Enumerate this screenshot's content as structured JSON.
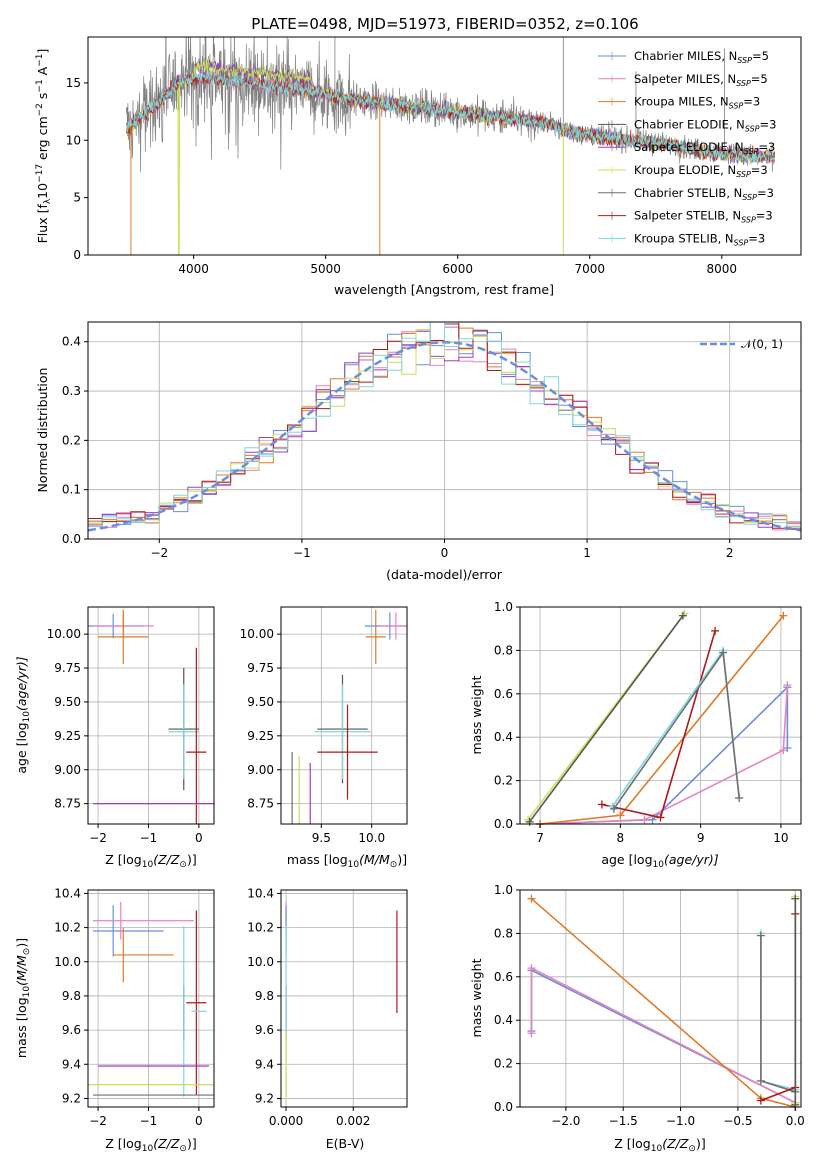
{
  "title": "PLATE=0498, MJD=51973, FIBERID=0352, z=0.106",
  "colors": {
    "chabrier_miles": "#6a8ee0",
    "salpeter_miles": "#e684c0",
    "kroupa_miles": "#e07a28",
    "chabrier_elodie": "#555555",
    "salpeter_elodie": "#9b3fc8",
    "kroupa_elodie": "#c8e05a",
    "chabrier_stelib": "#6f6f6f",
    "salpeter_stelib": "#b01818",
    "kroupa_stelib": "#7fd8dc",
    "data": "#808080",
    "normal": "#6a8ee0"
  },
  "chart_data": [
    {
      "id": "spectrum",
      "type": "line",
      "xlabel": "wavelength [Angstrom, rest frame]",
      "ylabel_main": "Flux [f",
      "ylabel_sub": "λ",
      "ylabel_rest": "10",
      "ylabel_exp1": "−17",
      "ylabel_unit": " erg cm",
      "ylabel_exp2": "−2",
      "ylabel_s": " s",
      "ylabel_exp3": "−1",
      "ylabel_A": " A",
      "ylabel_exp4": "−1",
      "ylabel_end": "]",
      "xlim": [
        3200,
        8600
      ],
      "ylim": [
        0,
        19
      ],
      "xticks": [
        "4000",
        "5000",
        "6000",
        "7000",
        "8000"
      ],
      "xtick_values": [
        4000,
        5000,
        6000,
        7000,
        8000
      ],
      "yticks": [
        "0",
        "5",
        "10",
        "15"
      ],
      "ytick_values": [
        0,
        5,
        10,
        15
      ],
      "continuum": {
        "x": [
          3500,
          3700,
          3900,
          4100,
          4300,
          4500,
          4700,
          4900,
          5100,
          5300,
          5500,
          5700,
          5900,
          6100,
          6300,
          6500,
          6700,
          6900,
          7100,
          7300,
          7500,
          7700,
          7900,
          8100,
          8300
        ],
        "y": [
          11.0,
          13.0,
          15.2,
          15.5,
          15.1,
          14.9,
          14.6,
          14.3,
          13.7,
          13.4,
          13.1,
          12.9,
          12.6,
          12.3,
          12.0,
          11.8,
          11.4,
          10.6,
          10.3,
          10.0,
          9.8,
          9.4,
          9.0,
          8.8,
          8.5
        ]
      },
      "legend": [
        {
          "label": "Chabrier MILES, N",
          "sub": "SSP",
          "suffix": "=5",
          "color_key": "chabrier_miles"
        },
        {
          "label": "Salpeter MILES, N",
          "sub": "SSP",
          "suffix": "=5",
          "color_key": "salpeter_miles"
        },
        {
          "label": "Kroupa MILES, N",
          "sub": "SSP",
          "suffix": "=3",
          "color_key": "kroupa_miles"
        },
        {
          "label": "Chabrier ELODIE, N",
          "sub": "SSP",
          "suffix": "=3",
          "color_key": "chabrier_elodie"
        },
        {
          "label": "Salpeter ELODIE, N",
          "sub": "SSP",
          "suffix": "=3",
          "color_key": "salpeter_elodie"
        },
        {
          "label": "Kroupa ELODIE, N",
          "sub": "SSP",
          "suffix": "=3",
          "color_key": "kroupa_elodie"
        },
        {
          "label": "Chabrier STELIB, N",
          "sub": "SSP",
          "suffix": "=3",
          "color_key": "chabrier_stelib"
        },
        {
          "label": "Salpeter STELIB, N",
          "sub": "SSP",
          "suffix": "=3",
          "color_key": "salpeter_stelib"
        },
        {
          "label": "Kroupa STELIB, N",
          "sub": "SSP",
          "suffix": "=3",
          "color_key": "kroupa_stelib"
        }
      ],
      "legend_placement": "top-right"
    },
    {
      "id": "residuals",
      "type": "step-histogram",
      "xlabel": "(data-model)/error",
      "ylabel": "Normed distribution",
      "xlim": [
        -2.5,
        2.5
      ],
      "ylim": [
        0,
        0.44
      ],
      "xticks": [
        "−2",
        "−1",
        "0",
        "1",
        "2"
      ],
      "xtick_values": [
        -2,
        -1,
        0,
        1,
        2
      ],
      "yticks": [
        "0.0",
        "0.1",
        "0.2",
        "0.3",
        "0.4"
      ],
      "ytick_values": [
        0,
        0.1,
        0.2,
        0.3,
        0.4
      ],
      "normal_label": "𝒩(0, 1)",
      "legend_placement": "top-right",
      "grid": true
    },
    {
      "id": "age_vs_Z",
      "type": "errorbar",
      "xlabel": "Z [log",
      "xlabel_sub": "10",
      "xlabel_rest": "(Z/Z",
      "xlabel_sun": "⊙",
      "xlabel_end": ")]",
      "ylabel": "age  [log",
      "ylabel_sub": "10",
      "ylabel_rest": "(age/yr)]",
      "xlim": [
        -2.2,
        0.3
      ],
      "ylim": [
        8.6,
        10.2
      ],
      "xticks": [
        "−2",
        "−1",
        "0"
      ],
      "xtick_values": [
        -2,
        -1,
        0
      ],
      "yticks": [
        "8.75",
        "9.00",
        "9.25",
        "9.50",
        "9.75",
        "10.00"
      ],
      "ytick_values": [
        8.75,
        9.0,
        9.25,
        9.5,
        9.75,
        10.0
      ],
      "points": [
        {
          "x": -1.7,
          "y": 10.06,
          "xerr": 0.6,
          "yerr": 0.09,
          "c": "chabrier_miles"
        },
        {
          "x": -1.5,
          "y": 10.06,
          "xerr": 0.6,
          "yerr": 0.09,
          "c": "salpeter_miles"
        },
        {
          "x": -1.5,
          "y": 9.98,
          "xerr": 0.5,
          "yerr": 0.2,
          "c": "kroupa_miles"
        },
        {
          "x": -0.3,
          "y": 9.3,
          "xerr": 0.3,
          "yerr": 0.45,
          "c": "chabrier_elodie"
        },
        {
          "x": -0.3,
          "y": 9.28,
          "xerr": 0.3,
          "yerr": 0.35,
          "c": "kroupa_stelib"
        },
        {
          "x": -0.05,
          "y": 9.13,
          "xerr": 0.2,
          "yerr": 0.77,
          "c": "salpeter_stelib"
        },
        {
          "x": -0.9,
          "y": 8.75,
          "xerr": 1.2,
          "yerr": 0.0,
          "c": "kroupa_elodie"
        },
        {
          "x": -0.9,
          "y": 8.75,
          "xerr": 1.2,
          "yerr": 0.0,
          "c": "salpeter_elodie"
        }
      ]
    },
    {
      "id": "age_vs_mass",
      "type": "errorbar",
      "xlabel": "mass [log",
      "xlabel_sub": "10",
      "xlabel_rest": "(M/M",
      "xlabel_sun": "⊙",
      "xlabel_end": ")]",
      "xlim": [
        9.1,
        10.35
      ],
      "ylim": [
        8.6,
        10.2
      ],
      "xticks": [
        "9.5",
        "10.0"
      ],
      "xtick_values": [
        9.5,
        10.0
      ],
      "yticks": [
        "8.75",
        "9.00",
        "9.25",
        "9.50",
        "9.75",
        "10.00"
      ],
      "ytick_values": [
        8.75,
        9.0,
        9.25,
        9.5,
        9.75,
        10.0
      ],
      "points": [
        {
          "x": 10.18,
          "y": 10.06,
          "xerr": 0.25,
          "yerr": 0.1,
          "c": "chabrier_miles"
        },
        {
          "x": 10.24,
          "y": 10.06,
          "xerr": 0.15,
          "yerr": 0.1,
          "c": "salpeter_miles"
        },
        {
          "x": 10.04,
          "y": 9.98,
          "xerr": 0.1,
          "yerr": 0.2,
          "c": "kroupa_miles"
        },
        {
          "x": 9.71,
          "y": 9.3,
          "xerr": 0.25,
          "yerr": 0.4,
          "c": "chabrier_elodie"
        },
        {
          "x": 9.71,
          "y": 9.28,
          "xerr": 0.28,
          "yerr": 0.35,
          "c": "kroupa_stelib"
        },
        {
          "x": 9.76,
          "y": 9.13,
          "xerr": 0.3,
          "yerr": 0.35,
          "c": "salpeter_stelib"
        },
        {
          "x": 9.39,
          "y": 8.75,
          "xerr": 0.0,
          "yerr": 0.3,
          "c": "salpeter_elodie"
        },
        {
          "x": 9.28,
          "y": 8.75,
          "xerr": 0.0,
          "yerr": 0.35,
          "c": "kroupa_elodie"
        },
        {
          "x": 9.21,
          "y": 8.75,
          "xerr": 0.0,
          "yerr": 0.38,
          "c": "chabrier_stelib"
        }
      ]
    },
    {
      "id": "massweight_vs_age",
      "type": "line",
      "xlabel": "age  [log",
      "xlabel_sub": "10",
      "xlabel_rest": "(age/yr)]",
      "ylabel": "mass weight",
      "xlim": [
        6.75,
        10.25
      ],
      "ylim": [
        0,
        1
      ],
      "xticks": [
        "7",
        "8",
        "9",
        "10"
      ],
      "xtick_values": [
        7,
        8,
        9,
        10
      ],
      "yticks": [
        "0.0",
        "0.2",
        "0.4",
        "0.6",
        "0.8",
        "1.0"
      ],
      "ytick_values": [
        0,
        0.2,
        0.4,
        0.6,
        0.8,
        1.0
      ],
      "series": [
        {
          "c": "chabrier_miles",
          "x": [
            7.0,
            8.4,
            10.08,
            10.08
          ],
          "y": [
            0.0,
            0.02,
            0.63,
            0.35
          ]
        },
        {
          "c": "salpeter_miles",
          "x": [
            7.0,
            8.3,
            10.03,
            10.08
          ],
          "y": [
            0.0,
            0.02,
            0.34,
            0.64
          ]
        },
        {
          "c": "kroupa_miles",
          "x": [
            7.0,
            8.0,
            10.03
          ],
          "y": [
            0.0,
            0.04,
            0.96
          ]
        },
        {
          "c": "kroupa_elodie",
          "x": [
            6.85,
            8.8
          ],
          "y": [
            0.02,
            0.97
          ]
        },
        {
          "c": "chabrier_elodie",
          "x": [
            6.87,
            8.78
          ],
          "y": [
            0.01,
            0.96
          ]
        },
        {
          "c": "salpeter_stelib",
          "x": [
            7.77,
            8.5,
            9.18
          ],
          "y": [
            0.09,
            0.03,
            0.89
          ]
        },
        {
          "c": "kroupa_stelib",
          "x": [
            7.9,
            9.28,
            9.48
          ],
          "y": [
            0.08,
            0.8,
            0.12
          ]
        },
        {
          "c": "chabrier_stelib",
          "x": [
            7.92,
            9.28,
            9.48
          ],
          "y": [
            0.07,
            0.79,
            0.12
          ]
        }
      ]
    },
    {
      "id": "mass_vs_Z",
      "type": "errorbar",
      "xlabel": "Z [log",
      "xlabel_sub": "10",
      "xlabel_rest": "(Z/Z",
      "xlabel_sun": "⊙",
      "xlabel_end": ")]",
      "ylabel": "mass [log",
      "ylabel_sub": "10",
      "ylabel_rest": "(M/M",
      "ylabel_sun": "⊙",
      "ylabel_end": ")]",
      "xlim": [
        -2.2,
        0.3
      ],
      "ylim": [
        9.15,
        10.42
      ],
      "xticks": [
        "−2",
        "−1",
        "0"
      ],
      "xtick_values": [
        -2,
        -1,
        0
      ],
      "yticks": [
        "9.2",
        "9.4",
        "9.6",
        "9.8",
        "10.0",
        "10.2",
        "10.4"
      ],
      "ytick_values": [
        9.2,
        9.4,
        9.6,
        9.8,
        10.0,
        10.2,
        10.4
      ],
      "points": [
        {
          "x": -1.4,
          "y": 10.18,
          "xerr": 0.7,
          "yerr": 0.0,
          "c": "chabrier_miles"
        },
        {
          "x": -1.7,
          "y": 10.18,
          "xerr": 0.0,
          "yerr": 0.15,
          "c": "chabrier_miles"
        },
        {
          "x": -1.1,
          "y": 10.24,
          "xerr": 1.0,
          "yerr": 0.0,
          "c": "salpeter_miles"
        },
        {
          "x": -1.55,
          "y": 10.24,
          "xerr": 0.0,
          "yerr": 0.11,
          "c": "salpeter_miles"
        },
        {
          "x": -1.1,
          "y": 10.04,
          "xerr": 0.6,
          "yerr": 0.0,
          "c": "kroupa_miles"
        },
        {
          "x": -1.5,
          "y": 10.04,
          "xerr": 0.0,
          "yerr": 0.16,
          "c": "kroupa_miles"
        },
        {
          "x": -0.3,
          "y": 9.7,
          "xerr": 0.0,
          "yerr": 0.16,
          "c": "chabrier_elodie"
        },
        {
          "x": -0.3,
          "y": 9.71,
          "xerr": 0.0,
          "yerr": 0.5,
          "c": "kroupa_stelib"
        },
        {
          "x": -0.05,
          "y": 9.76,
          "xerr": 0.2,
          "yerr": 0.54,
          "c": "salpeter_stelib"
        },
        {
          "x": -0.9,
          "y": 9.39,
          "xerr": 1.1,
          "yerr": 0.0,
          "c": "salpeter_elodie"
        },
        {
          "x": -0.9,
          "y": 9.28,
          "xerr": 1.3,
          "yerr": 0.0,
          "c": "kroupa_elodie"
        },
        {
          "x": -0.9,
          "y": 9.22,
          "xerr": 1.2,
          "yerr": 0.0,
          "c": "chabrier_stelib"
        },
        {
          "x": 0.0,
          "y": 9.71,
          "xerr": 0.15,
          "yerr": 0.0,
          "c": "kroupa_stelib"
        }
      ]
    },
    {
      "id": "mass_vs_EBV",
      "type": "errorbar",
      "xlabel": "E(B-V)",
      "xlim": [
        -0.00015,
        0.0036
      ],
      "ylim": [
        9.15,
        10.42
      ],
      "xticks": [
        "0.000",
        "0.002"
      ],
      "xtick_values": [
        0,
        0.002
      ],
      "yticks": [
        "9.2",
        "9.4",
        "9.6",
        "9.8",
        "10.0",
        "10.2",
        "10.4"
      ],
      "ytick_values": [
        9.2,
        9.4,
        9.6,
        9.8,
        10.0,
        10.2,
        10.4
      ],
      "points": [
        {
          "x": 0.0,
          "y": 10.24,
          "xerr": 0.0,
          "yerr": 0.11,
          "c": "salpeter_miles"
        },
        {
          "x": 0.0,
          "y": 10.18,
          "xerr": 0.0,
          "yerr": 0.15,
          "c": "chabrier_miles"
        },
        {
          "x": 0.0,
          "y": 9.7,
          "xerr": 0.0,
          "yerr": 0.16,
          "c": "chabrier_elodie"
        },
        {
          "x": 0.0,
          "y": 9.71,
          "xerr": 0.0,
          "yerr": 0.5,
          "c": "kroupa_stelib"
        },
        {
          "x": 0.0,
          "y": 9.39,
          "xerr": 0.0,
          "yerr": 0.2,
          "c": "kroupa_elodie"
        },
        {
          "x": 0.0033,
          "y": 10.0,
          "xerr": 0.0,
          "yerr": 0.3,
          "c": "salpeter_stelib"
        }
      ]
    },
    {
      "id": "massweight_vs_Z",
      "type": "line",
      "xlabel": "Z [log",
      "xlabel_sub": "10",
      "xlabel_rest": "(Z/Z",
      "xlabel_sun": "⊙",
      "xlabel_end": ")]",
      "ylabel": "mass weight",
      "xlim": [
        -2.4,
        0.05
      ],
      "ylim": [
        0,
        1
      ],
      "xticks": [
        "−2.0",
        "−1.5",
        "−1.0",
        "−0.5",
        "0.0"
      ],
      "xtick_values": [
        -2.0,
        -1.5,
        -1.0,
        -0.5,
        0.0
      ],
      "yticks": [
        "0.0",
        "0.2",
        "0.4",
        "0.6",
        "0.8",
        "1.0"
      ],
      "ytick_values": [
        0,
        0.2,
        0.4,
        0.6,
        0.8,
        1.0
      ],
      "series": [
        {
          "c": "chabrier_miles",
          "x": [
            -2.3,
            -2.3,
            0.0
          ],
          "y": [
            0.35,
            0.63,
            0.02
          ]
        },
        {
          "c": "salpeter_miles",
          "x": [
            -2.3,
            -2.3,
            0.0
          ],
          "y": [
            0.34,
            0.64,
            0.02
          ]
        },
        {
          "c": "kroupa_miles",
          "x": [
            -2.3,
            -0.3,
            0.0
          ],
          "y": [
            0.96,
            0.04,
            0.0
          ]
        },
        {
          "c": "kroupa_stelib",
          "x": [
            -0.3,
            -0.3,
            0.0
          ],
          "y": [
            0.8,
            0.12,
            0.08
          ]
        },
        {
          "c": "chabrier_stelib",
          "x": [
            -0.3,
            -0.3,
            0.0
          ],
          "y": [
            0.79,
            0.12,
            0.07
          ]
        },
        {
          "c": "salpeter_stelib",
          "x": [
            -0.3,
            0.0,
            0.0
          ],
          "y": [
            0.03,
            0.09,
            0.89
          ]
        },
        {
          "c": "kroupa_elodie",
          "x": [
            0.0,
            0.0
          ],
          "y": [
            0.02,
            0.97
          ]
        },
        {
          "c": "chabrier_elodie",
          "x": [
            0.0,
            0.0
          ],
          "y": [
            0.01,
            0.96
          ]
        }
      ]
    }
  ]
}
